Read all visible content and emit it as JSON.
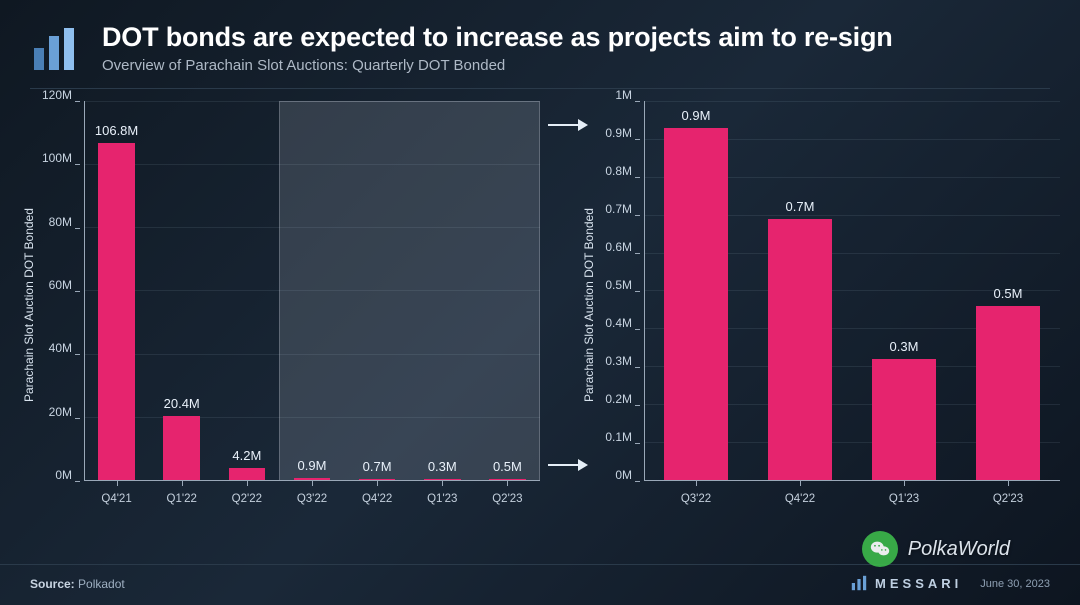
{
  "header": {
    "title": "DOT bonds are expected to increase as projects aim to re-sign",
    "subtitle": "Overview of Parachain Slot Auctions: Quarterly DOT Bonded"
  },
  "colors": {
    "bar": "#e6246e",
    "text": "#e5eef7",
    "subtext": "#aeb9c6",
    "grid": "rgba(160,180,200,0.12)",
    "axis": "#9aa8b8",
    "highlight_fill": "rgba(220,225,235,0.16)",
    "bg_gradient": [
      "#0f1822",
      "#1a2838",
      "#0d1520"
    ]
  },
  "chart_left": {
    "type": "bar",
    "ylabel": "Parachain Slot Auction DOT Bonded",
    "ylim": [
      0,
      120
    ],
    "ytick_step": 20,
    "ytick_suffix": "M",
    "categories": [
      "Q4'21",
      "Q1'22",
      "Q2'22",
      "Q3'22",
      "Q4'22",
      "Q1'23",
      "Q2'23"
    ],
    "values": [
      106.8,
      20.4,
      4.2,
      0.9,
      0.7,
      0.3,
      0.5
    ],
    "value_labels": [
      "106.8M",
      "20.4M",
      "4.2M",
      "0.9M",
      "0.7M",
      "0.3M",
      "0.5M"
    ],
    "bar_color": "#e6246e",
    "bar_width": 0.56,
    "label_fontsize": 13,
    "tick_fontsize": 12,
    "highlight_span": [
      3,
      7
    ]
  },
  "chart_right": {
    "type": "bar",
    "ylabel": "Parachain Slot Auction DOT Bonded",
    "ylim": [
      0,
      1.0
    ],
    "ytick_step": 0.1,
    "ytick_suffix": "M",
    "categories": [
      "Q3'22",
      "Q4'22",
      "Q1'23",
      "Q2'23"
    ],
    "values": [
      0.93,
      0.69,
      0.32,
      0.46
    ],
    "value_labels": [
      "0.9M",
      "0.7M",
      "0.3M",
      "0.5M"
    ],
    "bar_color": "#e6246e",
    "bar_width": 0.62,
    "label_fontsize": 13,
    "tick_fontsize": 12
  },
  "footer": {
    "source_label": "Source:",
    "source_value": "Polkadot",
    "brand": "MESSARI",
    "date": "June 30, 2023"
  },
  "watermark": {
    "text": "PolkaWorld"
  }
}
